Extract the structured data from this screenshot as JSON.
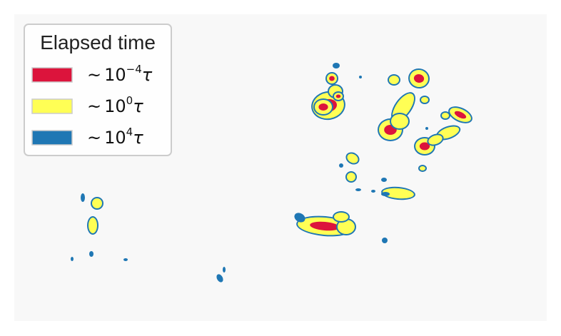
{
  "chart_data": {
    "type": "contour",
    "title": "",
    "xlabel": "",
    "ylabel": "",
    "axes_visible": false,
    "legend": {
      "title": "Elapsed time",
      "placement": "top-left",
      "entries": [
        {
          "tilde": "~",
          "base": "10",
          "exponent": "−4",
          "unit": "τ",
          "color": "#dc143c"
        },
        {
          "tilde": "~",
          "base": "10",
          "exponent": "0",
          "unit": "τ",
          "color": "#ffff55"
        },
        {
          "tilde": "~",
          "base": "10",
          "exponent": "4",
          "unit": "τ",
          "color": "#1f77b4"
        }
      ]
    },
    "series": [
      {
        "name": "~10^−4τ",
        "color": "#dc143c"
      },
      {
        "name": "~10^0τ",
        "color": "#ffff55"
      },
      {
        "name": "~10^4τ",
        "color": "#1f77b4"
      }
    ]
  },
  "colors": {
    "background": "#f8f8f8",
    "red": "#dc143c",
    "yellow": "#ffff55",
    "blue": "#1f77b4",
    "legend_border": "#cccccc"
  }
}
